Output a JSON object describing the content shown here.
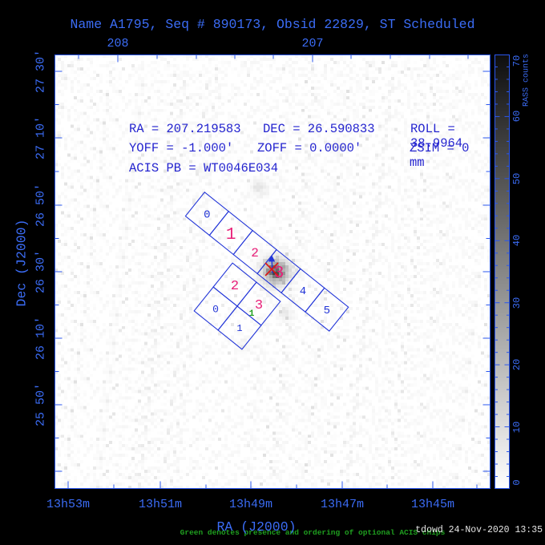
{
  "title": "Name A1795, Seq # 890173, Obsid 22829, ST Scheduled",
  "info": {
    "line1": [
      "RA = 207.219583",
      "DEC = 26.590833",
      "ROLL = 38.9964"
    ],
    "line2": [
      "YOFF =  -1.000'",
      "ZOFF =  0.0000'",
      "ZSIM = 0 mm"
    ],
    "line3": [
      "ACIS PB = WT0046E034"
    ]
  },
  "axes": {
    "x_bottom": {
      "label": "RA (J2000)",
      "tick_labels": [
        "13h53m",
        "13h51m",
        "13h49m",
        "13h47m",
        "13h45m"
      ]
    },
    "x_top": {
      "tick_labels": [
        "208",
        "207"
      ]
    },
    "y_left": {
      "label": "Dec (J2000)",
      "tick_labels": [
        "27 30'",
        "27 10'",
        "26 50'",
        "26 30'",
        "26 10'",
        "25 50'"
      ]
    }
  },
  "colorbar": {
    "label": "RASS counts",
    "min": 0,
    "max": 70,
    "tick_labels": [
      "0",
      "10",
      "20",
      "30",
      "40",
      "50",
      "60",
      "70"
    ]
  },
  "note_green": "Green denotes presence and ordering of optional ACIS chips",
  "footer": "tdowd 24-Nov-2020 13:35",
  "chips": {
    "s_array": [
      {
        "label": "0",
        "state": "off"
      },
      {
        "label": "1",
        "state": "on"
      },
      {
        "label": "2",
        "state": "on"
      },
      {
        "label": "3",
        "state": "on"
      },
      {
        "label": "4",
        "state": "off"
      },
      {
        "label": "5",
        "state": "off"
      }
    ],
    "i_array": [
      {
        "label": "2",
        "state": "on"
      },
      {
        "label": "3",
        "state": "on"
      },
      {
        "label": "0",
        "state": "off"
      },
      {
        "label": "1",
        "state": "off"
      }
    ],
    "optional_order": [
      {
        "label": "1",
        "near_chip": "I3"
      }
    ]
  },
  "colors": {
    "accent_blue": "#3b6cf5",
    "plot_text_blue": "#2424cf",
    "frame_blue": "#2b57ee",
    "chip_blue": "#2336d8",
    "magenta": "#e81f78",
    "green": "#1f9f1f",
    "red": "#dc1414",
    "footer_white": "#e6e6e6"
  },
  "chart_data": {
    "type": "heatmap",
    "title": "Name A1795, Seq # 890173, Obsid 22829, ST Scheduled",
    "xlabel": "RA (J2000)",
    "ylabel": "Dec (J2000)",
    "x_tick_labels_bottom": [
      "13h53m",
      "13h51m",
      "13h49m",
      "13h47m",
      "13h45m"
    ],
    "x_tick_labels_top_deg": [
      "208",
      "207"
    ],
    "y_tick_labels": [
      "27 30'",
      "27 10'",
      "26 50'",
      "26 30'",
      "26 10'",
      "25 50'"
    ],
    "x_axis_direction": "RA increases to the left",
    "colorbar": {
      "label": "RASS counts",
      "min": 0,
      "max": 70,
      "tick_step": 10,
      "minor_tick_step": 2,
      "scale": "dark = high counts, white = low counts"
    },
    "pointing": {
      "ra_deg": 207.219583,
      "dec_deg": 26.590833,
      "roll_deg": 38.9964,
      "yoff_arcmin": -1.0,
      "zoff_arcmin": 0.0,
      "zsim_mm": 0,
      "acis_pb": "WT0046E034"
    },
    "overlays": {
      "acis_s_row_chips": [
        {
          "chip": "0",
          "label_color": "blue"
        },
        {
          "chip": "1",
          "label_color": "magenta"
        },
        {
          "chip": "2",
          "label_color": "magenta"
        },
        {
          "chip": "3",
          "label_color": "magenta",
          "aimpoint": true
        },
        {
          "chip": "4",
          "label_color": "blue"
        },
        {
          "chip": "5",
          "label_color": "blue"
        }
      ],
      "acis_i_square_chips": [
        {
          "chip": "2",
          "label_color": "magenta"
        },
        {
          "chip": "3",
          "label_color": "magenta",
          "optional_order_green": "1"
        },
        {
          "chip": "0",
          "label_color": "blue"
        },
        {
          "chip": "1",
          "label_color": "blue"
        }
      ],
      "aimpoint_marker": "red X with small blue arrow on chip S3",
      "chip_roll_deg": 38.7
    },
    "image_content": "grayscale RASS counts sky image with diffuse cluster emission (A1795) at the aimpoint and faint patches elsewhere",
    "note": "Green denotes presence and ordering of optional ACIS chips"
  }
}
